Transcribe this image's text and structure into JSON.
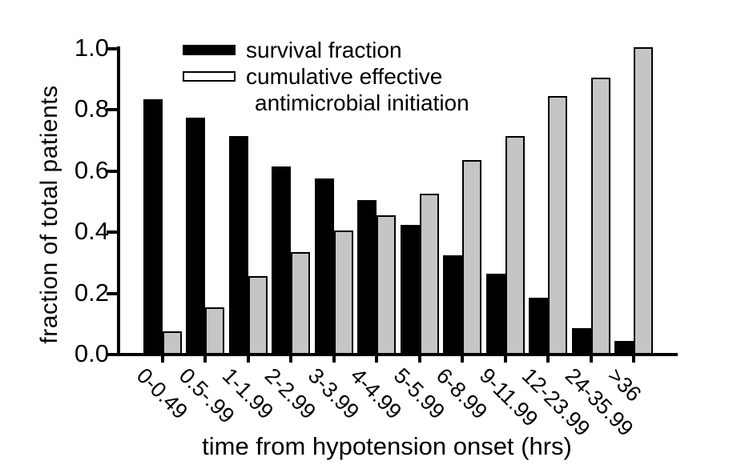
{
  "axes": {
    "x_title": "time from hypotension onset (hrs)",
    "y_title": "fraction of total patients"
  },
  "legend": {
    "series1_label": "survival fraction",
    "series2_label_line1": "cumulative effective",
    "series2_label_line2": "antimicrobial initiation"
  },
  "chart_data": {
    "type": "bar",
    "title": "",
    "xlabel": "time from hypotension onset (hrs)",
    "ylabel": "fraction of total patients",
    "categories": [
      "0-0.49",
      "0.5-.99",
      "1-1.99",
      "2-2.99",
      "3-3.99",
      "4-4.99",
      "5-5.99",
      "6-8.99",
      "9-11.99",
      "12-23.99",
      "24-35.99",
      ">36"
    ],
    "series": [
      {
        "name": "survival fraction",
        "color": "#000000",
        "values": [
          0.83,
          0.77,
          0.71,
          0.61,
          0.57,
          0.5,
          0.42,
          0.32,
          0.26,
          0.18,
          0.08,
          0.04
        ]
      },
      {
        "name": "cumulative effective antimicrobial initiation",
        "color": "#c5c5c5",
        "values": [
          0.07,
          0.15,
          0.25,
          0.33,
          0.4,
          0.45,
          0.52,
          0.63,
          0.71,
          0.84,
          0.9,
          1.0
        ]
      }
    ],
    "ylim": [
      0.0,
      1.0
    ],
    "yticks": [
      0.0,
      0.2,
      0.4,
      0.6,
      0.8,
      1.0
    ],
    "ytick_labels": [
      "0.0",
      "0.2",
      "0.4",
      "0.6",
      "0.8",
      "1.0"
    ],
    "x_tick_rotation_deg": 45,
    "grid": false,
    "legend_position": "upper-left-inside",
    "bar_outline_color": "#000000"
  }
}
